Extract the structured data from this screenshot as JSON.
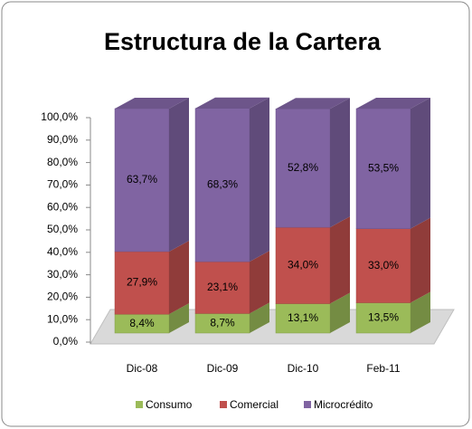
{
  "chart_data": {
    "type": "bar",
    "stacked": true,
    "title": "Estructura de la Cartera",
    "categories": [
      "Dic-08",
      "Dic-09",
      "Dic-10",
      "Feb-11"
    ],
    "series": [
      {
        "name": "Consumo",
        "color": "#9bbb59",
        "values": [
          8.4,
          8.7,
          13.1,
          13.5
        ],
        "value_labels": [
          "8,4%",
          "8,7%",
          "13,1%",
          "13,5%"
        ]
      },
      {
        "name": "Comercial",
        "color": "#c0504d",
        "values": [
          27.9,
          23.1,
          34.0,
          33.0
        ],
        "value_labels": [
          "27,9%",
          "23,1%",
          "34,0%",
          "33,0%"
        ]
      },
      {
        "name": "Microcrédito",
        "color": "#8064a2",
        "values": [
          63.7,
          68.3,
          52.8,
          53.5
        ],
        "value_labels": [
          "63,7%",
          "68,3%",
          "52,8%",
          "53,5%"
        ]
      }
    ],
    "ylim": [
      0,
      100
    ],
    "yticks": [
      {
        "value": 0,
        "label": "0,0%"
      },
      {
        "value": 10,
        "label": "10,0%"
      },
      {
        "value": 20,
        "label": "20,0%"
      },
      {
        "value": 30,
        "label": "30,0%"
      },
      {
        "value": 40,
        "label": "40,0%"
      },
      {
        "value": 50,
        "label": "50,0%"
      },
      {
        "value": 60,
        "label": "60,0%"
      },
      {
        "value": 70,
        "label": "70,0%"
      },
      {
        "value": 80,
        "label": "80,0%"
      },
      {
        "value": 90,
        "label": "90,0%"
      },
      {
        "value": 100,
        "label": "100,0%"
      }
    ],
    "legend": "bottom"
  }
}
